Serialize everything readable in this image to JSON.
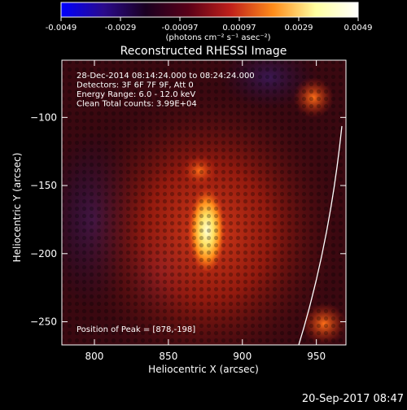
{
  "colorbar": {
    "tick_labels": [
      "-0.0049",
      "-0.0029",
      "-0.00097",
      "0.00097",
      "0.0029",
      "0.0049"
    ],
    "unit_label": "(photons cm⁻² s⁻¹ asec⁻²)",
    "colormap_stops": [
      "#0000ff",
      "#2a0a8c",
      "#1a0020",
      "#5a0018",
      "#c0201a",
      "#ff8c1a",
      "#ffffa0",
      "#ffffff"
    ]
  },
  "chart_data": {
    "type": "heatmap",
    "title": "Reconstructed RHESSI Image",
    "xlabel": "Heliocentric X (arcsec)",
    "ylabel": "Heliocentric Y (arcsec)",
    "xlim": [
      778,
      970
    ],
    "ylim": [
      -267,
      -58
    ],
    "x_ticks": [
      800,
      850,
      900,
      950
    ],
    "y_ticks": [
      -100,
      -150,
      -200,
      -250
    ],
    "annotations": [
      "28-Dec-2014 08:14:24.000 to 08:24:24.000",
      "Detectors: 3F 6F 7F 9F, Att 0",
      "Energy Range: 6.0 - 12.0 keV",
      "Clean    Total counts: 3.99E+04"
    ],
    "peak_label": "Position of Peak = [878,-198]",
    "peak": [
      878,
      -198
    ],
    "colors": {
      "source_core": "#ffffc0",
      "source_mid": "#ff9a20",
      "halo": "#b8200f",
      "background": "#3a0810",
      "negative": "#2a1040"
    }
  },
  "footer": {
    "timestamp": "20-Sep-2017 08:47"
  }
}
